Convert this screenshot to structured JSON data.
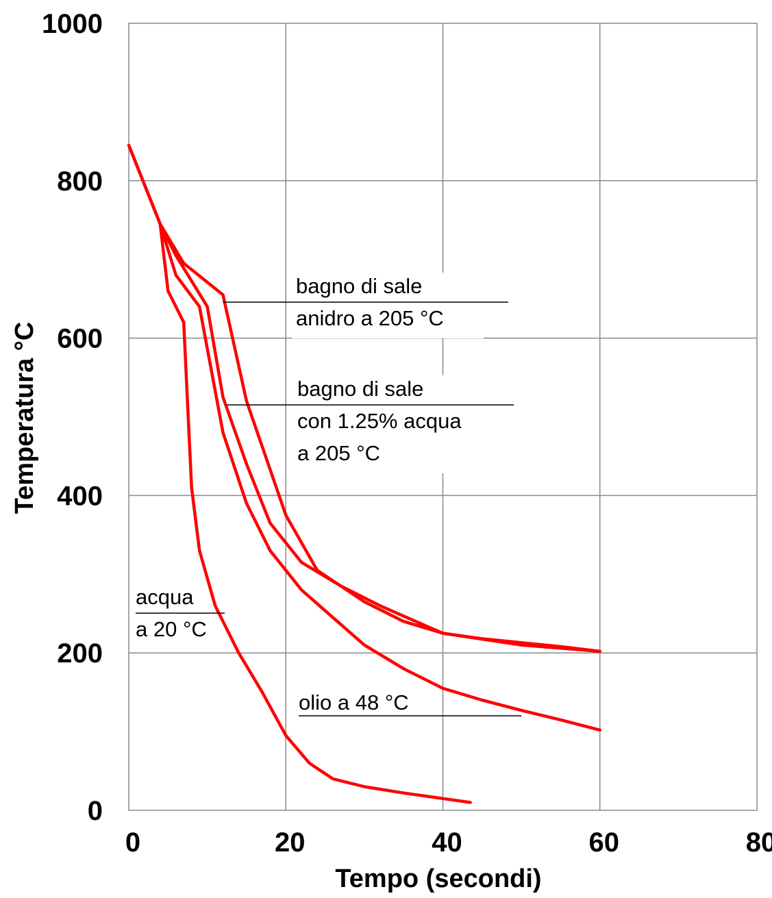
{
  "chart_data": {
    "type": "line",
    "title": "",
    "xlabel": "Tempo  (secondi)",
    "ylabel": "Temperatura  °C",
    "xlim": [
      0,
      80
    ],
    "ylim": [
      0,
      1000
    ],
    "x_ticks": [
      "0",
      "20",
      "40",
      "60",
      "80"
    ],
    "y_ticks": [
      "0",
      "200",
      "400",
      "600",
      "800",
      "1000"
    ],
    "grid": true,
    "line_color": "#ff0000",
    "series": [
      {
        "label": [
          "bagno di sale",
          "anidro a 205 °C"
        ],
        "x": [
          0,
          2,
          4,
          7,
          12,
          15,
          20,
          24,
          30,
          35,
          40,
          45,
          50,
          55,
          60
        ],
        "y": [
          845,
          795,
          745,
          695,
          655,
          520,
          375,
          305,
          265,
          240,
          225,
          218,
          213,
          208,
          202
        ]
      },
      {
        "label": [
          "bagno di sale",
          "con 1.25% acqua",
          "a 205 °C"
        ],
        "x": [
          4,
          6,
          10,
          12,
          15,
          18,
          22,
          27,
          32,
          40,
          50,
          60
        ],
        "y": [
          745,
          705,
          640,
          525,
          440,
          365,
          315,
          285,
          260,
          225,
          210,
          202
        ]
      },
      {
        "label": [
          "olio a 48 °C"
        ],
        "x": [
          4,
          6,
          9,
          12,
          15,
          18,
          22,
          26,
          30,
          35,
          40,
          45,
          50,
          55,
          60
        ],
        "y": [
          745,
          680,
          640,
          480,
          390,
          330,
          280,
          245,
          210,
          180,
          155,
          140,
          127,
          115,
          102
        ]
      },
      {
        "label": [
          "acqua",
          "a 20 °C"
        ],
        "x": [
          0,
          2,
          4,
          5,
          7,
          8,
          9,
          11,
          14,
          17,
          20,
          23,
          26,
          30,
          35,
          40,
          43.5
        ],
        "y": [
          845,
          795,
          745,
          660,
          620,
          410,
          330,
          260,
          200,
          150,
          95,
          60,
          40,
          30,
          22,
          15,
          10
        ]
      }
    ]
  }
}
